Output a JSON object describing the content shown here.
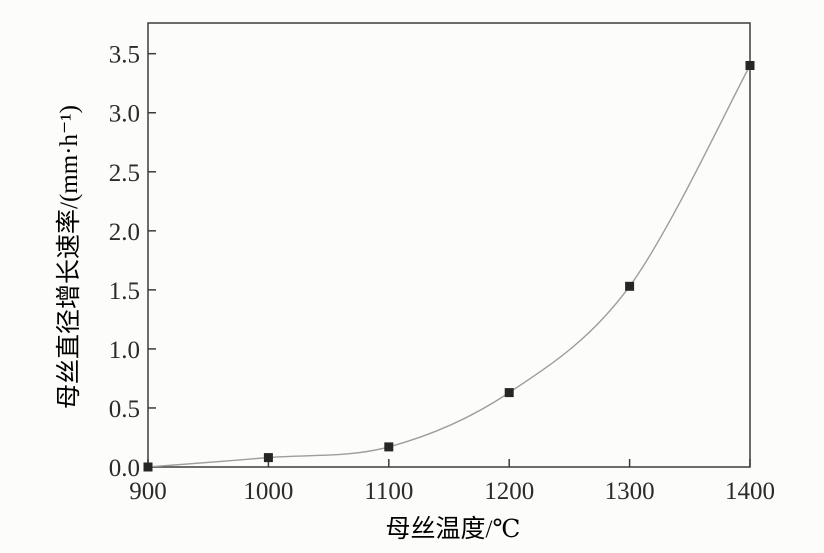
{
  "figure": {
    "background": "#fcfcfa"
  },
  "chart_data": {
    "type": "line",
    "title": "",
    "xlabel": "母丝温度/℃",
    "ylabel": "母丝直径增长速率/(mm·h⁻¹)",
    "x": [
      900,
      1000,
      1100,
      1200,
      1300,
      1400
    ],
    "series": [
      {
        "name": "母丝直径增长速率",
        "values": [
          0.0,
          0.08,
          0.17,
          0.63,
          1.53,
          3.4
        ]
      }
    ],
    "xticks": [
      900,
      1000,
      1100,
      1200,
      1300,
      1400
    ],
    "xtick_labels": [
      "900",
      "1000",
      "1100",
      "1200",
      "1300",
      "1400"
    ],
    "yticks": [
      0,
      0.5,
      1,
      1.5,
      2,
      2.5,
      3,
      3.5
    ],
    "ytick_labels": [
      "0.0",
      "0.5",
      "1.0",
      "1.5",
      "2.0",
      "2.5",
      "3.0",
      "3.5"
    ],
    "xlim": [
      900,
      1400
    ],
    "ylim": [
      0,
      3.76
    ],
    "grid": false,
    "legend_position": "none",
    "marker": "filled-square",
    "line_style": "smooth",
    "colors": {
      "line": "#9d9d99",
      "marker": "#262626",
      "axis": "#3c3c3c",
      "tick_label": "#2b2b2b"
    }
  }
}
